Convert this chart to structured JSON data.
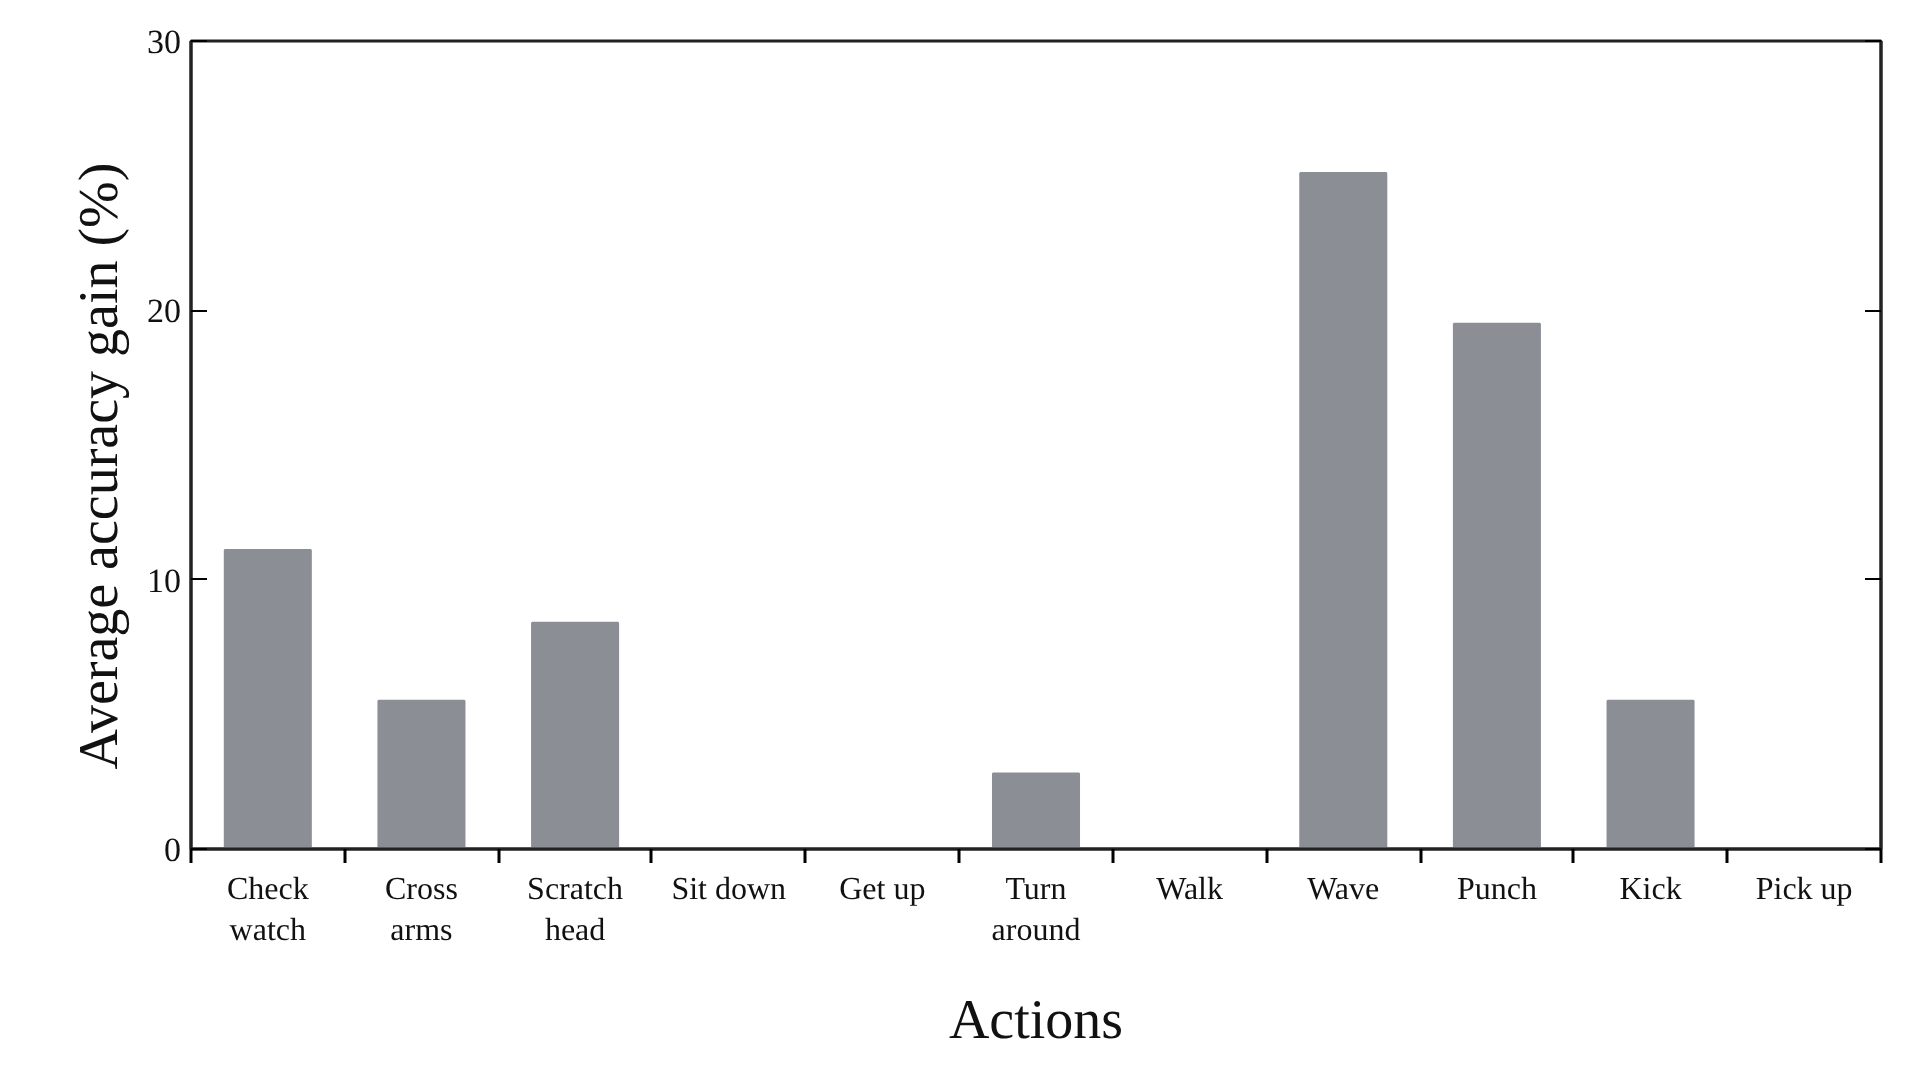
{
  "chart_data": {
    "type": "bar",
    "xlabel": "Actions",
    "ylabel": "Average  accuracy  gain  (%)",
    "categories": [
      "Check\nwatch",
      "Cross\narms",
      "Scratch\nhead",
      "Sit down",
      "Get up",
      "Turn\naround",
      "Walk",
      "Wave",
      "Punch",
      "Kick",
      "Pick up"
    ],
    "values": [
      11.1,
      5.5,
      8.4,
      0,
      0,
      2.8,
      0,
      25.1,
      19.5,
      5.5,
      0
    ],
    "color": "#8b8e95",
    "ylim": [
      0,
      30
    ],
    "yticks": [
      0,
      10,
      20,
      30
    ],
    "grid": false
  }
}
